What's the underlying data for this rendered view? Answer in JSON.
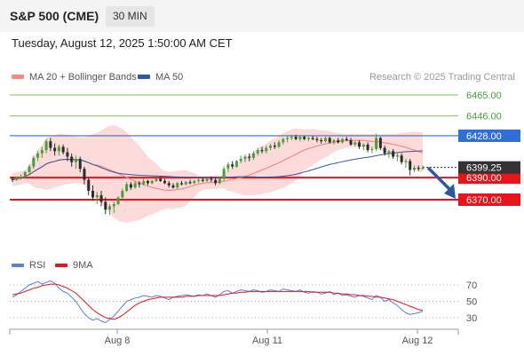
{
  "header": {
    "title": "S&P 500 (CME)",
    "timeframe": "30 MIN",
    "datetime": "Tuesday, August 12, 2025 1:50:00 AM CET"
  },
  "attribution": "Research © 2025 Trading Central",
  "colors": {
    "resistance_green": "#7cc35a",
    "pivot_blue": "#2f6fd6",
    "support_red": "#e8141c",
    "bollinger_fill": "#fbd3d3",
    "ma20": "#f28b82",
    "ma50": "#2c5aa0",
    "candle_up": "#4a9e3c",
    "candle_down": "#2b2b2b",
    "rsi": "#5b7fd6",
    "rsi_ma": "#e8141c",
    "current_price_bg": "#333333",
    "arrow": "#2c5aa0"
  },
  "chart_data": [
    {
      "type": "candlestick",
      "legend": [
        {
          "label": "MA 20 + Bollinger Bands",
          "color": "#f28b82"
        },
        {
          "label": "MA 50",
          "color": "#2c5aa0"
        }
      ],
      "ylim": [
        6350,
        6475
      ],
      "x_ticks": [
        "Aug 8",
        "Aug 11",
        "Aug 12"
      ],
      "current_price": "6399.25",
      "levels": [
        {
          "label": "6465.00",
          "value": 6465,
          "kind": "resistance"
        },
        {
          "label": "6446.00",
          "value": 6446,
          "kind": "resistance"
        },
        {
          "label": "6428.00",
          "value": 6428,
          "kind": "pivot"
        },
        {
          "label": "6390.00",
          "value": 6390,
          "kind": "support"
        },
        {
          "label": "6370.00",
          "value": 6370,
          "kind": "support"
        }
      ],
      "ohlc": [
        [
          6389,
          6391,
          6386,
          6388
        ],
        [
          6388,
          6391,
          6387,
          6390
        ],
        [
          6390,
          6393,
          6388,
          6391
        ],
        [
          6391,
          6396,
          6390,
          6395
        ],
        [
          6395,
          6402,
          6393,
          6400
        ],
        [
          6400,
          6410,
          6398,
          6408
        ],
        [
          6408,
          6414,
          6405,
          6412
        ],
        [
          6412,
          6418,
          6408,
          6415
        ],
        [
          6415,
          6425,
          6412,
          6423
        ],
        [
          6423,
          6426,
          6414,
          6417
        ],
        [
          6417,
          6421,
          6410,
          6414
        ],
        [
          6414,
          6420,
          6410,
          6418
        ],
        [
          6418,
          6420,
          6411,
          6413
        ],
        [
          6413,
          6417,
          6405,
          6409
        ],
        [
          6409,
          6412,
          6400,
          6404
        ],
        [
          6404,
          6410,
          6398,
          6407
        ],
        [
          6407,
          6409,
          6395,
          6398
        ],
        [
          6398,
          6400,
          6384,
          6388
        ],
        [
          6388,
          6390,
          6374,
          6378
        ],
        [
          6378,
          6383,
          6369,
          6372
        ],
        [
          6372,
          6377,
          6366,
          6374
        ],
        [
          6374,
          6378,
          6364,
          6368
        ],
        [
          6368,
          6372,
          6357,
          6361
        ],
        [
          6361,
          6366,
          6356,
          6364
        ],
        [
          6364,
          6368,
          6358,
          6366
        ],
        [
          6366,
          6373,
          6365,
          6372
        ],
        [
          6372,
          6380,
          6371,
          6378
        ],
        [
          6378,
          6386,
          6377,
          6384
        ],
        [
          6384,
          6386,
          6379,
          6381
        ],
        [
          6381,
          6387,
          6380,
          6385
        ],
        [
          6385,
          6387,
          6381,
          6384
        ],
        [
          6384,
          6389,
          6383,
          6387
        ],
        [
          6387,
          6388,
          6383,
          6385
        ],
        [
          6385,
          6388,
          6384,
          6387
        ],
        [
          6387,
          6390,
          6386,
          6389
        ],
        [
          6389,
          6391,
          6386,
          6387
        ],
        [
          6387,
          6389,
          6384,
          6385
        ],
        [
          6385,
          6387,
          6381,
          6383
        ],
        [
          6383,
          6385,
          6380,
          6381
        ],
        [
          6381,
          6386,
          6380,
          6385
        ],
        [
          6385,
          6387,
          6383,
          6384
        ],
        [
          6384,
          6387,
          6383,
          6386
        ],
        [
          6386,
          6388,
          6384,
          6385
        ],
        [
          6385,
          6388,
          6384,
          6387
        ],
        [
          6387,
          6389,
          6385,
          6388
        ],
        [
          6388,
          6390,
          6386,
          6387
        ],
        [
          6387,
          6390,
          6386,
          6389
        ],
        [
          6389,
          6391,
          6386,
          6388
        ],
        [
          6388,
          6390,
          6383,
          6385
        ],
        [
          6385,
          6390,
          6384,
          6389
        ],
        [
          6389,
          6400,
          6387,
          6398
        ],
        [
          6398,
          6404,
          6395,
          6402
        ],
        [
          6402,
          6405,
          6398,
          6400
        ],
        [
          6400,
          6406,
          6399,
          6405
        ],
        [
          6405,
          6410,
          6403,
          6407
        ],
        [
          6407,
          6411,
          6404,
          6409
        ],
        [
          6409,
          6412,
          6405,
          6408
        ],
        [
          6408,
          6414,
          6406,
          6412
        ],
        [
          6412,
          6417,
          6410,
          6415
        ],
        [
          6415,
          6418,
          6412,
          6414
        ],
        [
          6414,
          6419,
          6412,
          6417
        ],
        [
          6417,
          6421,
          6415,
          6419
        ],
        [
          6419,
          6422,
          6416,
          6418
        ],
        [
          6418,
          6424,
          6417,
          6422
        ],
        [
          6422,
          6426,
          6420,
          6425
        ],
        [
          6425,
          6428,
          6422,
          6426
        ],
        [
          6426,
          6429,
          6424,
          6427
        ],
        [
          6427,
          6429,
          6424,
          6425
        ],
        [
          6425,
          6428,
          6423,
          6427
        ],
        [
          6427,
          6428,
          6424,
          6425
        ],
        [
          6425,
          6427,
          6423,
          6426
        ],
        [
          6426,
          6428,
          6424,
          6425
        ],
        [
          6425,
          6427,
          6422,
          6424
        ],
        [
          6424,
          6426,
          6421,
          6423
        ],
        [
          6423,
          6427,
          6422,
          6426
        ],
        [
          6426,
          6427,
          6421,
          6422
        ],
        [
          6422,
          6425,
          6420,
          6424
        ],
        [
          6424,
          6426,
          6421,
          6422
        ],
        [
          6422,
          6426,
          6421,
          6425
        ],
        [
          6425,
          6427,
          6423,
          6424
        ],
        [
          6424,
          6426,
          6419,
          6420
        ],
        [
          6420,
          6423,
          6418,
          6422
        ],
        [
          6422,
          6424,
          6416,
          6418
        ],
        [
          6418,
          6421,
          6415,
          6420
        ],
        [
          6420,
          6422,
          6413,
          6415
        ],
        [
          6415,
          6418,
          6412,
          6416
        ],
        [
          6416,
          6430,
          6414,
          6426
        ],
        [
          6426,
          6427,
          6415,
          6417
        ],
        [
          6417,
          6419,
          6410,
          6412
        ],
        [
          6412,
          6415,
          6408,
          6414
        ],
        [
          6414,
          6416,
          6407,
          6409
        ],
        [
          6409,
          6412,
          6405,
          6410
        ],
        [
          6410,
          6412,
          6402,
          6404
        ],
        [
          6404,
          6407,
          6399,
          6405
        ],
        [
          6405,
          6407,
          6392,
          6397
        ],
        [
          6397,
          6401,
          6395,
          6399
        ],
        [
          6399,
          6401,
          6396,
          6398
        ],
        [
          6398,
          6401,
          6397,
          6399
        ]
      ]
    },
    {
      "type": "line",
      "legend": [
        {
          "label": "RSI",
          "color": "#5b7fd6"
        },
        {
          "label": "9MA",
          "color": "#e8141c"
        }
      ],
      "ylim": [
        20,
        80
      ],
      "y_ticks": [
        70,
        50,
        30
      ],
      "series": [
        {
          "name": "RSI",
          "values": [
            55,
            58,
            62,
            66,
            70,
            72,
            74,
            71,
            73,
            75,
            72,
            66,
            62,
            60,
            55,
            50,
            42,
            35,
            30,
            27,
            29,
            26,
            24,
            28,
            32,
            38,
            44,
            50,
            52,
            54,
            55,
            57,
            56,
            55,
            57,
            56,
            54,
            52,
            55,
            56,
            57,
            58,
            57,
            56,
            58,
            57,
            59,
            57,
            55,
            58,
            62,
            63,
            60,
            62,
            64,
            63,
            62,
            64,
            63,
            61,
            62,
            64,
            63,
            62,
            65,
            64,
            63,
            62,
            64,
            61,
            60,
            62,
            61,
            59,
            60,
            62,
            58,
            60,
            57,
            58,
            56,
            55,
            57,
            56,
            54,
            52,
            57,
            55,
            50,
            52,
            48,
            45,
            40,
            36,
            34,
            35,
            36,
            38
          ]
        },
        {
          "name": "9MA",
          "values": [
            58,
            59,
            60,
            62,
            64,
            66,
            67,
            69,
            70,
            71,
            71,
            70,
            68,
            66,
            63,
            60,
            55,
            50,
            45,
            40,
            36,
            33,
            30,
            29,
            28,
            30,
            33,
            37,
            41,
            45,
            48,
            50,
            52,
            53,
            54,
            55,
            55,
            55,
            55,
            55,
            55,
            56,
            56,
            56,
            57,
            57,
            57,
            57,
            57,
            57,
            58,
            59,
            60,
            60,
            61,
            61,
            62,
            62,
            62,
            62,
            62,
            62,
            62,
            62,
            62,
            62,
            62,
            62,
            62,
            62,
            62,
            61,
            61,
            61,
            61,
            61,
            60,
            60,
            59,
            59,
            58,
            58,
            57,
            57,
            56,
            56,
            55,
            55,
            54,
            53,
            52,
            50,
            48,
            46,
            44,
            42,
            40,
            39
          ]
        }
      ]
    }
  ]
}
